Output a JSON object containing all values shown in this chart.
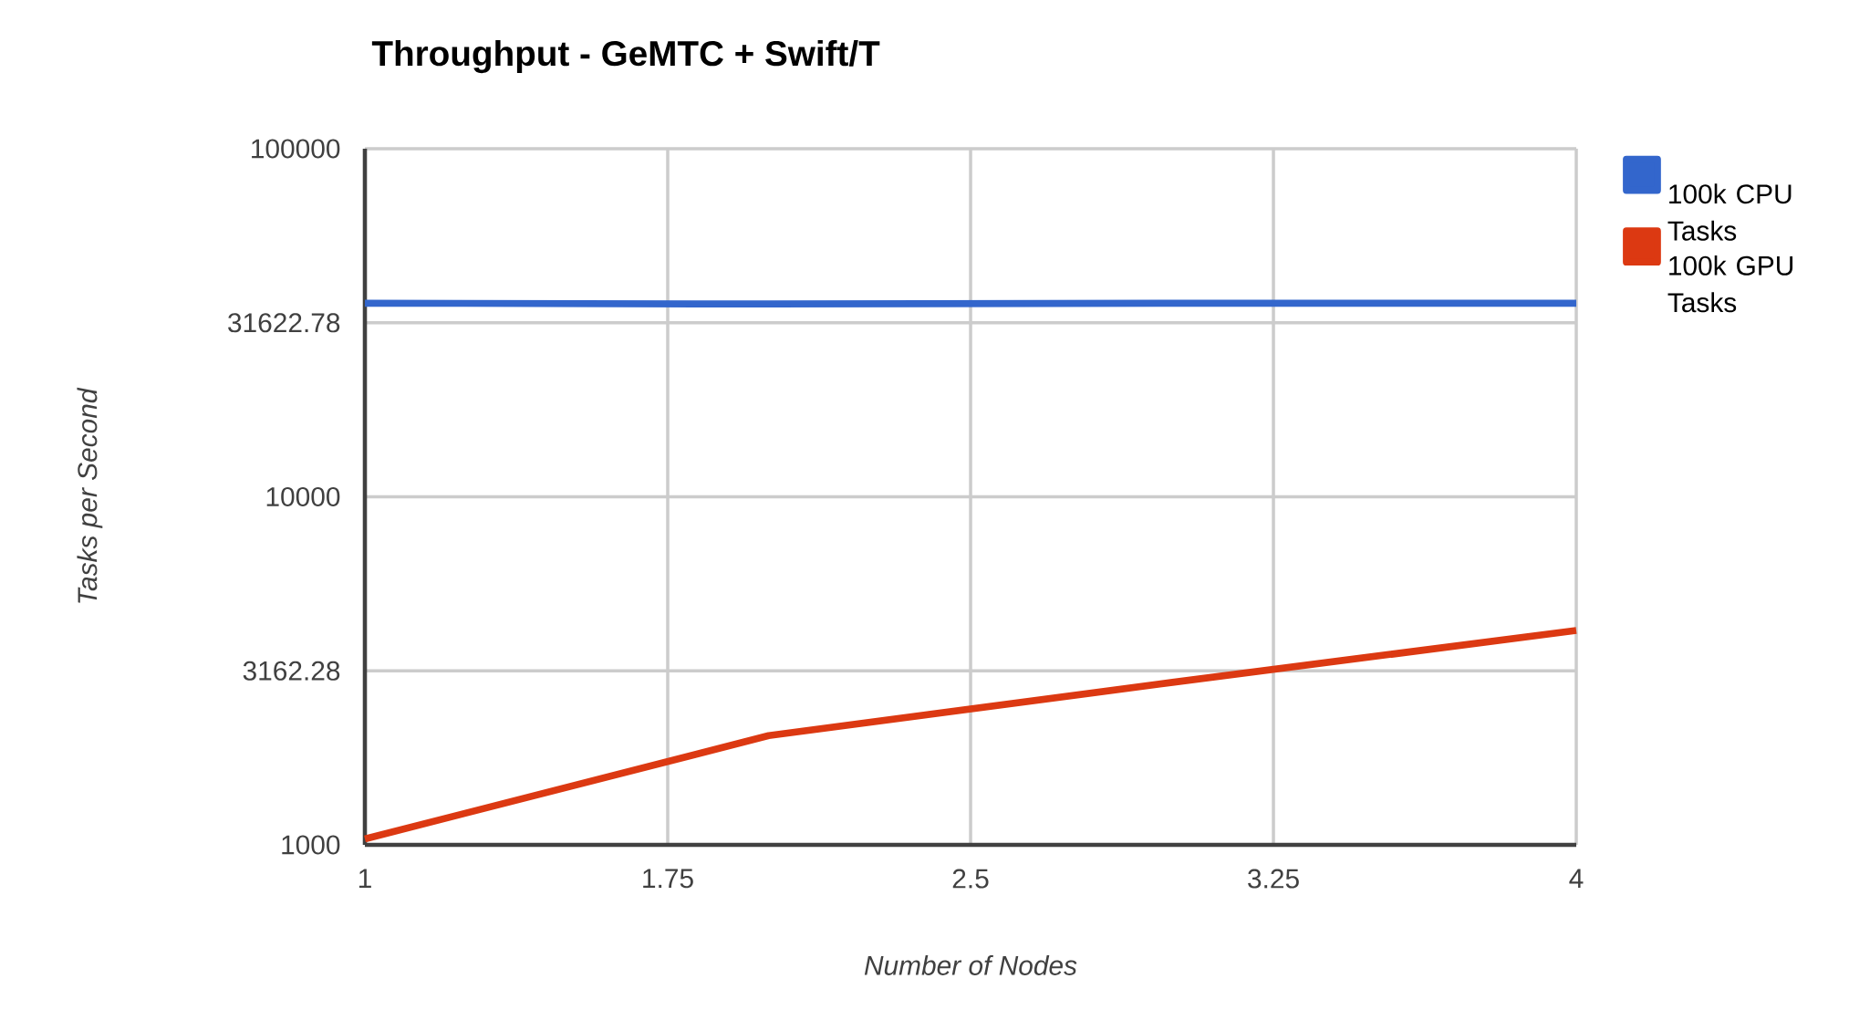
{
  "chart_data": {
    "type": "line",
    "title": "Throughput - GeMTC + Swift/T",
    "xlabel": "Number of Nodes",
    "ylabel": "Tasks per Second",
    "x": [
      1,
      2,
      3,
      4
    ],
    "series": [
      {
        "name": "100k CPU Tasks",
        "color": "#3366cc",
        "values": [
          36000,
          35800,
          36000,
          36000
        ]
      },
      {
        "name": "100k GPU Tasks",
        "color": "#dc3912",
        "values": [
          1040,
          2060,
          2930,
          4130
        ]
      }
    ],
    "xlim": [
      1,
      4
    ],
    "xticks": [
      1,
      1.75,
      2.5,
      3.25,
      4
    ],
    "ylim": [
      1000,
      100000
    ],
    "yticks": [
      1000,
      3162.28,
      10000,
      31622.78,
      100000
    ],
    "log": "y",
    "grid": true,
    "legend": "top right",
    "marker": "none",
    "line_style": "solid"
  }
}
